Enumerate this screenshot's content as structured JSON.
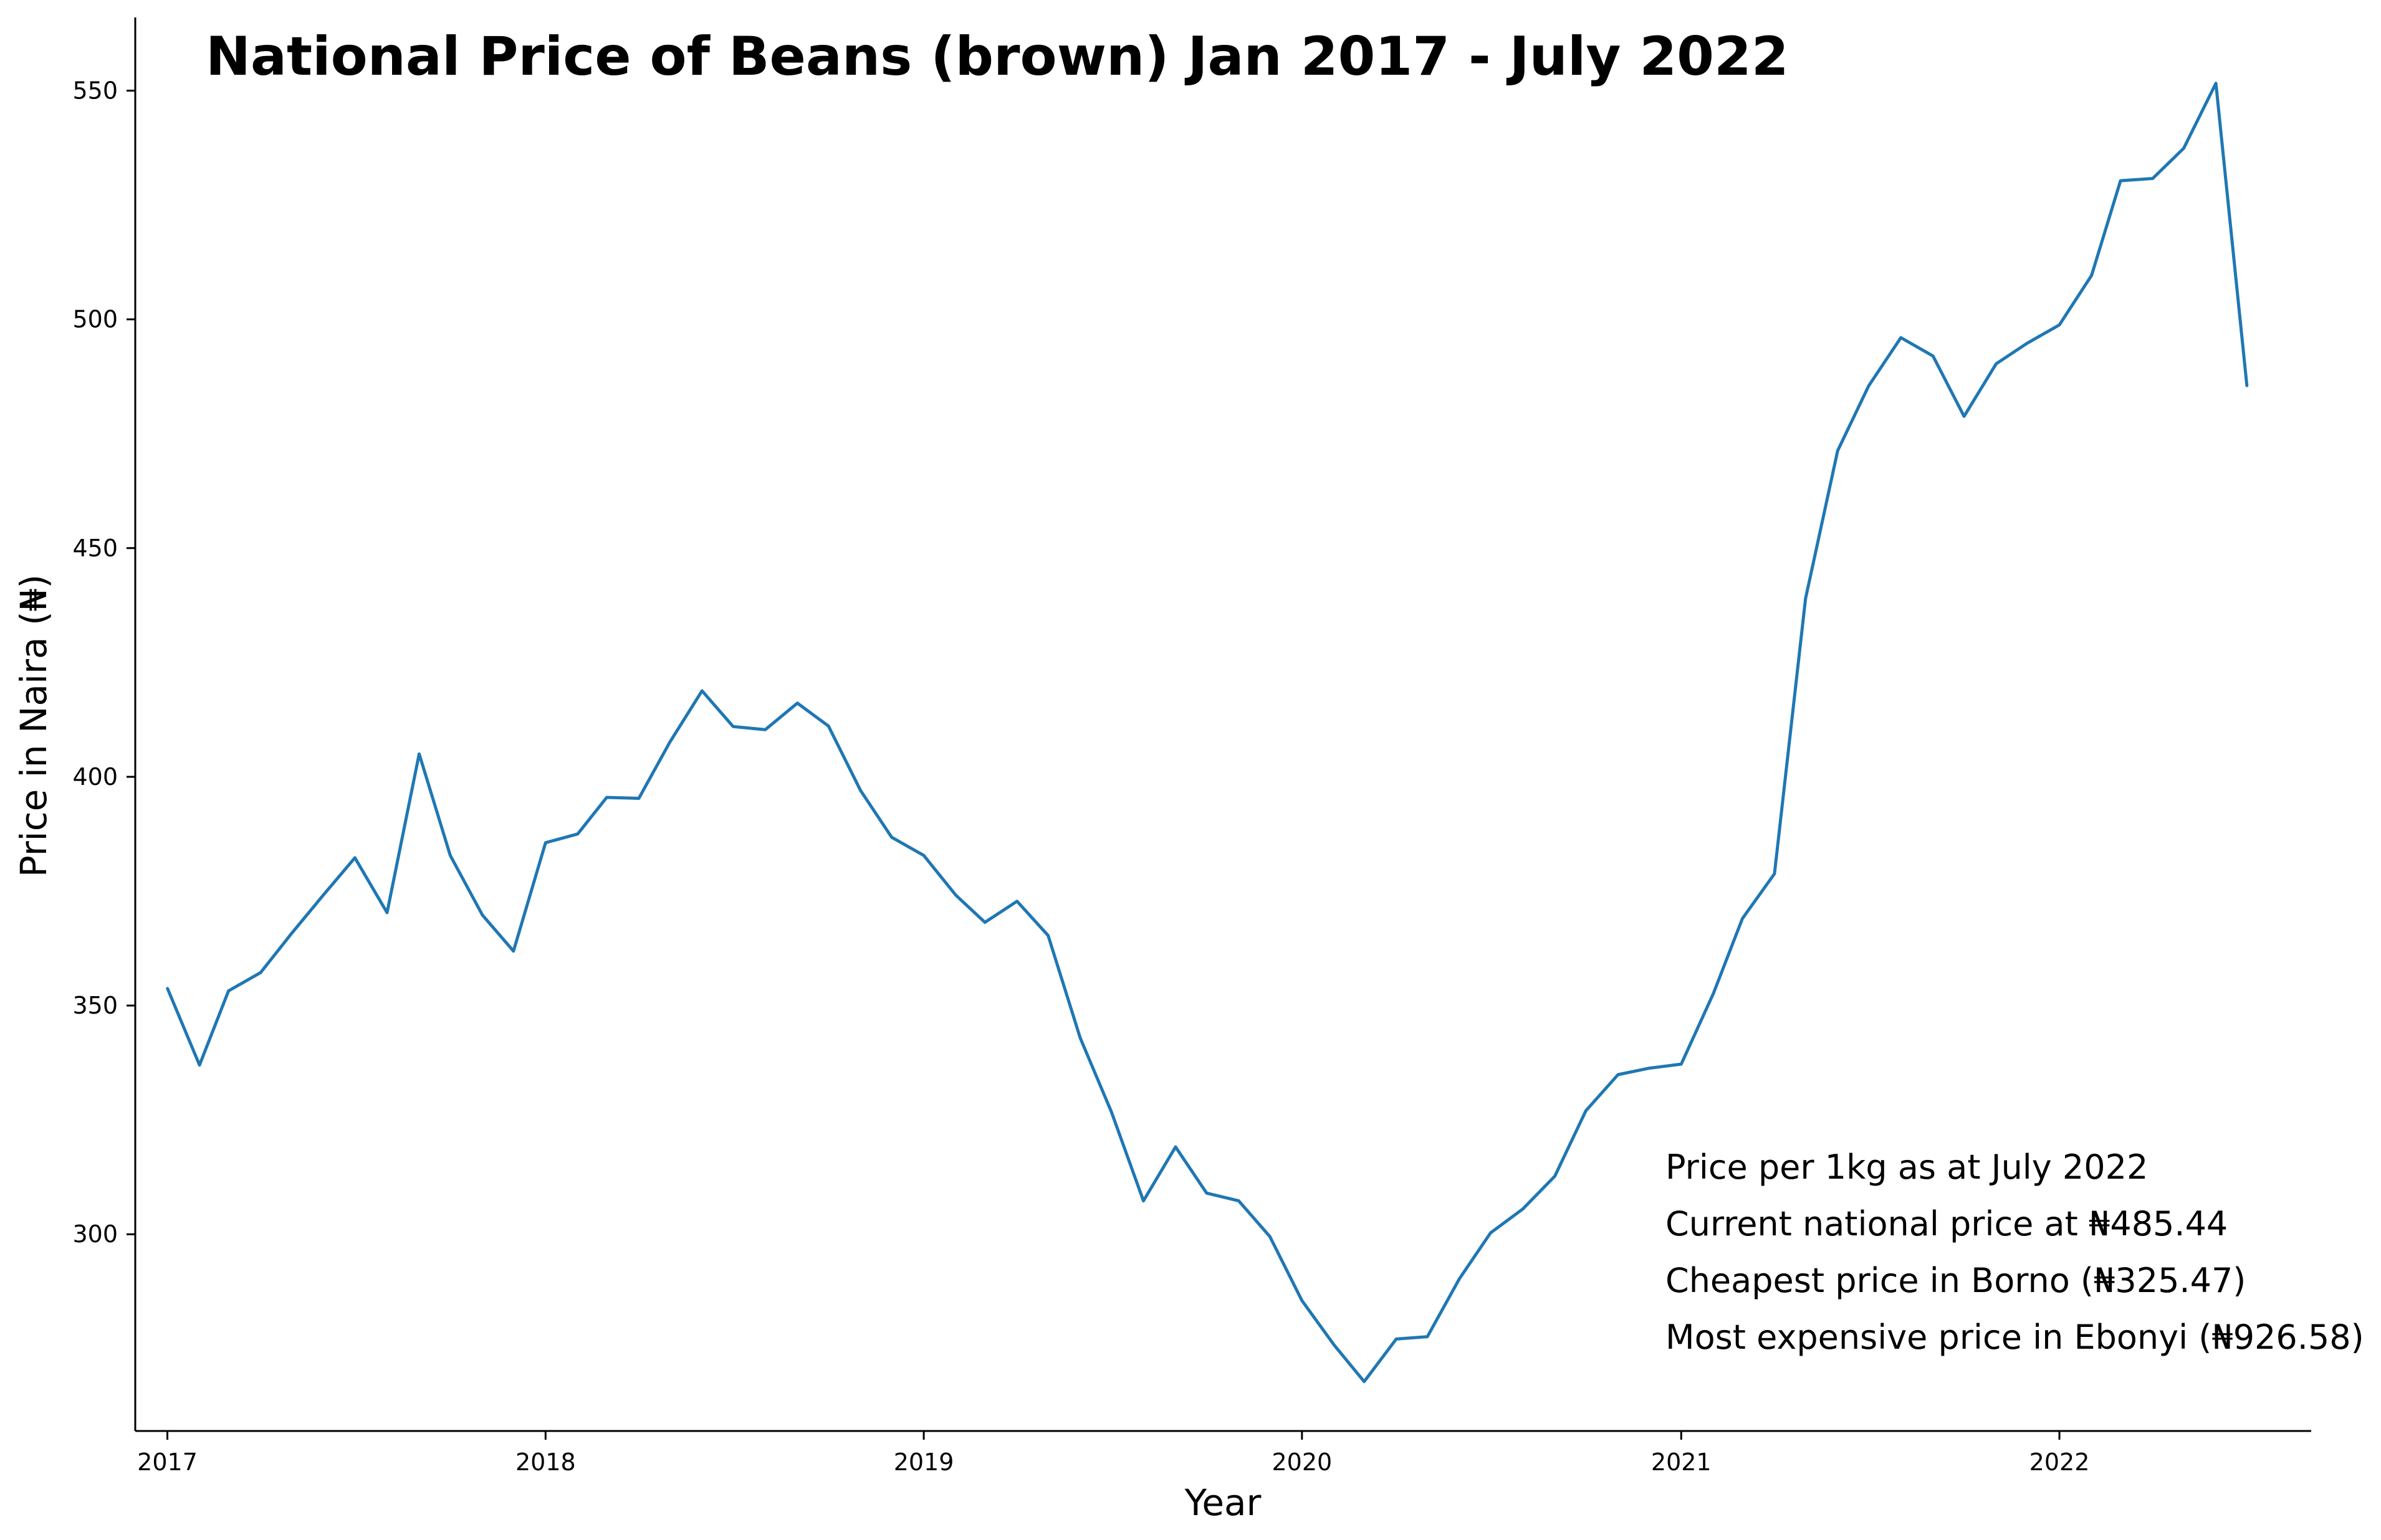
{
  "chart_data": {
    "type": "line",
    "title": "National Price of Beans (brown) Jan 2017 - July 2022",
    "xlabel": "Year",
    "ylabel": "Price in Naira (₦)",
    "xlim": [
      "2016-12-01",
      "2022-09-01"
    ],
    "ylim": [
      257,
      566
    ],
    "grid": false,
    "x_ticks": [
      {
        "label": "2017",
        "date": "2017-01-01"
      },
      {
        "label": "2018",
        "date": "2018-01-01"
      },
      {
        "label": "2019",
        "date": "2019-01-01"
      },
      {
        "label": "2020",
        "date": "2020-01-01"
      },
      {
        "label": "2021",
        "date": "2021-01-01"
      },
      {
        "label": "2022",
        "date": "2022-01-01"
      }
    ],
    "y_ticks": [
      300,
      350,
      400,
      450,
      500,
      550
    ],
    "color": "#1f77b4",
    "series": [
      {
        "x": [
          "2017-01",
          "2017-02",
          "2017-03",
          "2017-04",
          "2017-05",
          "2017-06",
          "2017-07",
          "2017-08",
          "2017-09",
          "2017-10",
          "2017-11",
          "2017-12",
          "2018-01",
          "2018-02",
          "2018-03",
          "2018-04",
          "2018-05",
          "2018-06",
          "2018-07",
          "2018-08",
          "2018-09",
          "2018-10",
          "2018-11",
          "2018-12",
          "2019-01",
          "2019-02",
          "2019-03",
          "2019-04",
          "2019-05",
          "2019-06",
          "2019-07",
          "2019-08",
          "2019-09",
          "2019-10",
          "2019-11",
          "2019-12",
          "2020-01",
          "2020-02",
          "2020-03",
          "2020-04",
          "2020-05",
          "2020-06",
          "2020-07",
          "2020-08",
          "2020-09",
          "2020-10",
          "2020-11",
          "2020-12",
          "2021-01",
          "2021-02",
          "2021-03",
          "2021-04",
          "2021-05",
          "2021-06",
          "2021-07",
          "2021-08",
          "2021-09",
          "2021-10",
          "2021-11",
          "2021-12",
          "2022-01",
          "2022-02",
          "2022-03",
          "2022-04",
          "2022-05",
          "2022-06",
          "2022-07"
        ],
        "values": [
          353.8,
          337.0,
          353.2,
          357.2,
          365.8,
          374.3,
          382.3,
          370.3,
          405.0,
          382.8,
          369.8,
          361.9,
          385.6,
          387.5,
          395.5,
          395.3,
          407.6,
          418.8,
          411.0,
          410.3,
          416.1,
          411.1,
          397.0,
          386.8,
          382.8,
          374.1,
          368.2,
          372.8,
          365.3,
          342.9,
          326.8,
          307.3,
          319.1,
          309.0,
          307.3,
          299.5,
          285.5,
          275.8,
          267.8,
          277.1,
          277.6,
          290.3,
          300.3,
          305.5,
          312.7,
          327.0,
          334.9,
          336.3,
          337.2,
          352.6,
          369.0,
          378.8,
          439.0,
          471.3,
          485.5,
          496.0,
          492.0,
          478.8,
          490.3,
          494.8,
          498.8,
          509.6,
          530.3,
          530.8,
          537.4,
          551.6,
          485.44
        ]
      }
    ],
    "annotations": [
      "Price per 1kg as at July 2022",
      "Current national price at ₦485.44",
      "Cheapest price in Borno (₦325.47)",
      "Most expensive price in Ebonyi (₦926.58)"
    ]
  }
}
